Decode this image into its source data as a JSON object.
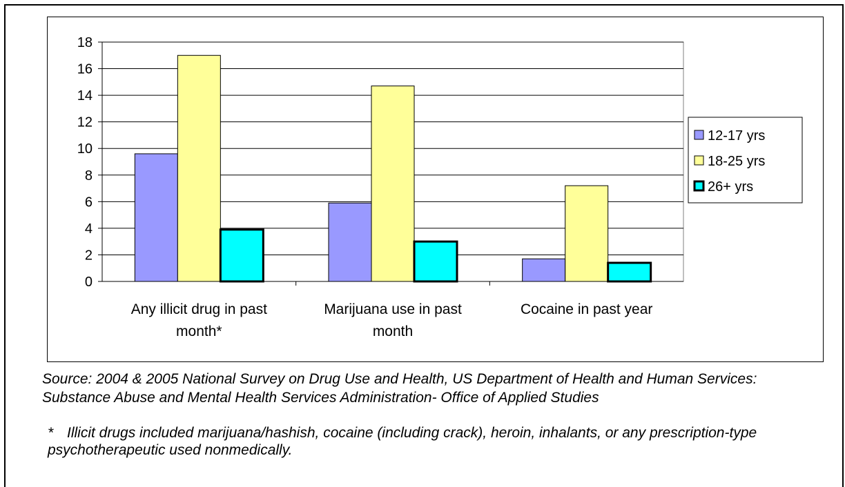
{
  "chart_data": {
    "type": "bar",
    "categories": [
      [
        "Any illicit drug in past",
        "month*"
      ],
      [
        "Marijuana use in past",
        "month"
      ],
      [
        "Cocaine in past year"
      ]
    ],
    "series": [
      {
        "name": "12-17 yrs",
        "color": "#9999FF",
        "values": [
          9.6,
          5.9,
          1.7
        ]
      },
      {
        "name": "18-25 yrs",
        "color": "#FFFF99",
        "values": [
          17.0,
          14.7,
          7.2
        ]
      },
      {
        "name": "26+ yrs",
        "color": "#00FFFF",
        "values": [
          3.9,
          3.0,
          1.4
        ]
      }
    ],
    "ylim": [
      0,
      18
    ],
    "yticks": [
      0,
      2,
      4,
      6,
      8,
      10,
      12,
      14,
      16,
      18
    ],
    "grid": true,
    "legend_position": "right"
  },
  "notes": {
    "source": "Source: 2004 & 2005 National Survey on Drug Use and Health, US Department of Health and Human Services: Substance Abuse and Mental Health Services Administration- Office of Applied Studies",
    "footnote_mark": "*",
    "footnote_text": "Illicit drugs included marijuana/hashish, cocaine (including crack), heroin, inhalants, or any prescription-type psychotherapeutic used nonmedically."
  }
}
